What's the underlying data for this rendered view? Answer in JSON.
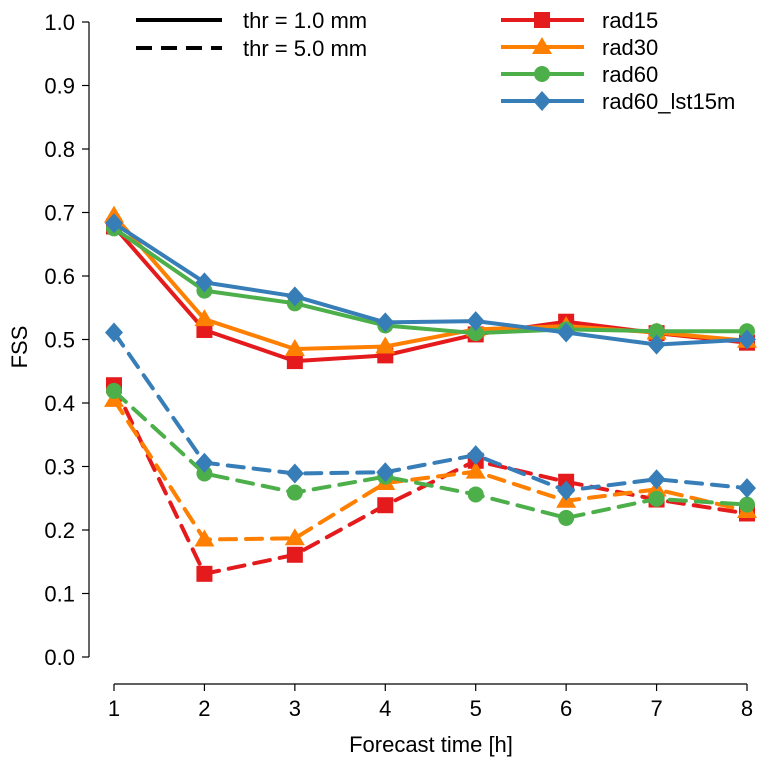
{
  "chart_data": {
    "type": "line",
    "title": "",
    "xlabel": "Forecast time [h]",
    "ylabel": "FSS",
    "x": [
      1,
      2,
      3,
      4,
      5,
      6,
      7,
      8
    ],
    "xlim": [
      1,
      8
    ],
    "ylim": [
      0.0,
      1.0
    ],
    "xticks": [
      "1",
      "2",
      "3",
      "4",
      "5",
      "6",
      "7",
      "8"
    ],
    "yticks": [
      "0.0",
      "0.1",
      "0.2",
      "0.3",
      "0.4",
      "0.5",
      "0.6",
      "0.7",
      "0.8",
      "0.9",
      "1.0"
    ],
    "grid": false,
    "style_legend": {
      "placement": "top-left",
      "entries": [
        {
          "label": "thr = 1.0 mm",
          "linestyle": "solid"
        },
        {
          "label": "thr = 5.0 mm",
          "linestyle": "dashed"
        }
      ]
    },
    "series_legend": {
      "placement": "top-right",
      "entries": [
        {
          "label": "rad15",
          "color": "#e41a1c",
          "marker": "square"
        },
        {
          "label": "rad30",
          "color": "#ff7f00",
          "marker": "triangle"
        },
        {
          "label": "rad60",
          "color": "#4daf4a",
          "marker": "circle"
        },
        {
          "label": "rad60_lst15m",
          "color": "#377eb8",
          "marker": "diamond"
        }
      ]
    },
    "series": [
      {
        "name": "rad15",
        "threshold": "thr = 1.0 mm",
        "linestyle": "solid",
        "color": "#e41a1c",
        "marker": "square",
        "values": [
          0.678,
          0.515,
          0.466,
          0.475,
          0.508,
          0.528,
          0.51,
          0.495
        ]
      },
      {
        "name": "rad30",
        "threshold": "thr = 1.0 mm",
        "linestyle": "solid",
        "color": "#ff7f00",
        "marker": "triangle",
        "values": [
          0.695,
          0.532,
          0.485,
          0.489,
          0.516,
          0.521,
          0.511,
          0.498
        ]
      },
      {
        "name": "rad60",
        "threshold": "thr = 1.0 mm",
        "linestyle": "solid",
        "color": "#4daf4a",
        "marker": "circle",
        "values": [
          0.675,
          0.577,
          0.557,
          0.522,
          0.51,
          0.516,
          0.513,
          0.513
        ]
      },
      {
        "name": "rad60_lst15m",
        "threshold": "thr = 1.0 mm",
        "linestyle": "solid",
        "color": "#377eb8",
        "marker": "diamond",
        "values": [
          0.683,
          0.59,
          0.568,
          0.527,
          0.529,
          0.511,
          0.492,
          0.5
        ]
      },
      {
        "name": "rad15",
        "threshold": "thr = 5.0 mm",
        "linestyle": "dashed",
        "color": "#e41a1c",
        "marker": "square",
        "values": [
          0.428,
          0.131,
          0.161,
          0.239,
          0.309,
          0.276,
          0.248,
          0.226
        ]
      },
      {
        "name": "rad30",
        "threshold": "thr = 5.0 mm",
        "linestyle": "dashed",
        "color": "#ff7f00",
        "marker": "triangle",
        "values": [
          0.405,
          0.185,
          0.187,
          0.274,
          0.292,
          0.246,
          0.264,
          0.23
        ]
      },
      {
        "name": "rad60",
        "threshold": "thr = 5.0 mm",
        "linestyle": "dashed",
        "color": "#4daf4a",
        "marker": "circle",
        "values": [
          0.419,
          0.289,
          0.259,
          0.284,
          0.256,
          0.219,
          0.249,
          0.24
        ]
      },
      {
        "name": "rad60_lst15m",
        "threshold": "thr = 5.0 mm",
        "linestyle": "dashed",
        "color": "#377eb8",
        "marker": "diamond",
        "values": [
          0.511,
          0.306,
          0.289,
          0.291,
          0.318,
          0.262,
          0.28,
          0.266
        ]
      }
    ]
  }
}
